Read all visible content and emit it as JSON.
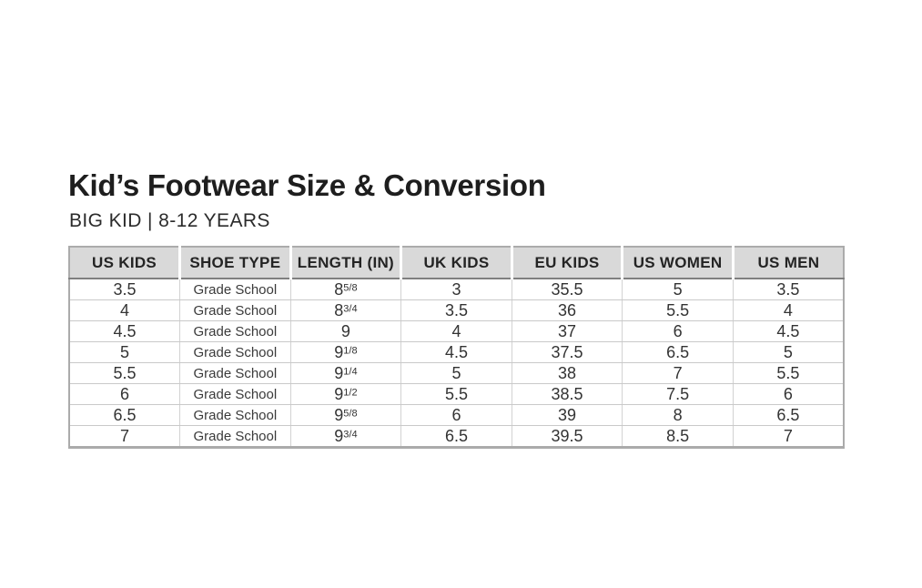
{
  "header": {
    "title": "Kid’s Footwear Size & Conversion",
    "subtitle": "BIG KID | 8-12 YEARS"
  },
  "chart_data": {
    "type": "table",
    "title": "Kid’s Footwear Size & Conversion",
    "subtitle": "BIG KID | 8-12 YEARS",
    "columns": [
      "US KIDS",
      "SHOE TYPE",
      "LENGTH (IN)",
      "UK KIDS",
      "EU KIDS",
      "US WOMEN",
      "US MEN"
    ],
    "rows": [
      [
        "3.5",
        "Grade School",
        {
          "base": "8",
          "frac": "5/8"
        },
        "3",
        "35.5",
        "5",
        "3.5"
      ],
      [
        "4",
        "Grade School",
        {
          "base": "8",
          "frac": "3/4"
        },
        "3.5",
        "36",
        "5.5",
        "4"
      ],
      [
        "4.5",
        "Grade School",
        {
          "base": "9",
          "frac": ""
        },
        "4",
        "37",
        "6",
        "4.5"
      ],
      [
        "5",
        "Grade School",
        {
          "base": "9",
          "frac": "1/8"
        },
        "4.5",
        "37.5",
        "6.5",
        "5"
      ],
      [
        "5.5",
        "Grade School",
        {
          "base": "9",
          "frac": "1/4"
        },
        "5",
        "38",
        "7",
        "5.5"
      ],
      [
        "6",
        "Grade School",
        {
          "base": "9",
          "frac": "1/2"
        },
        "5.5",
        "38.5",
        "7.5",
        "6"
      ],
      [
        "6.5",
        "Grade School",
        {
          "base": "9",
          "frac": "5/8"
        },
        "6",
        "39",
        "8",
        "6.5"
      ],
      [
        "7",
        "Grade School",
        {
          "base": "9",
          "frac": "3/4"
        },
        "6.5",
        "39.5",
        "8.5",
        "7"
      ]
    ],
    "cell_names": [
      "us-kids-cell",
      "shoe-type-cell",
      "length-cell",
      "uk-kids-cell",
      "eu-kids-cell",
      "us-women-cell",
      "us-men-cell"
    ]
  },
  "colors": {
    "page_background": "#ffffff",
    "header_row_background": "#d9d9d9",
    "header_row_text": "#242424",
    "body_text": "#333333",
    "outer_border": "#ababab",
    "header_bottom_divider": "#7f7f7f",
    "row_divider": "#c9c9c9",
    "column_divider": "#d2d2d2",
    "header_cell_gap": "#ffffff"
  }
}
